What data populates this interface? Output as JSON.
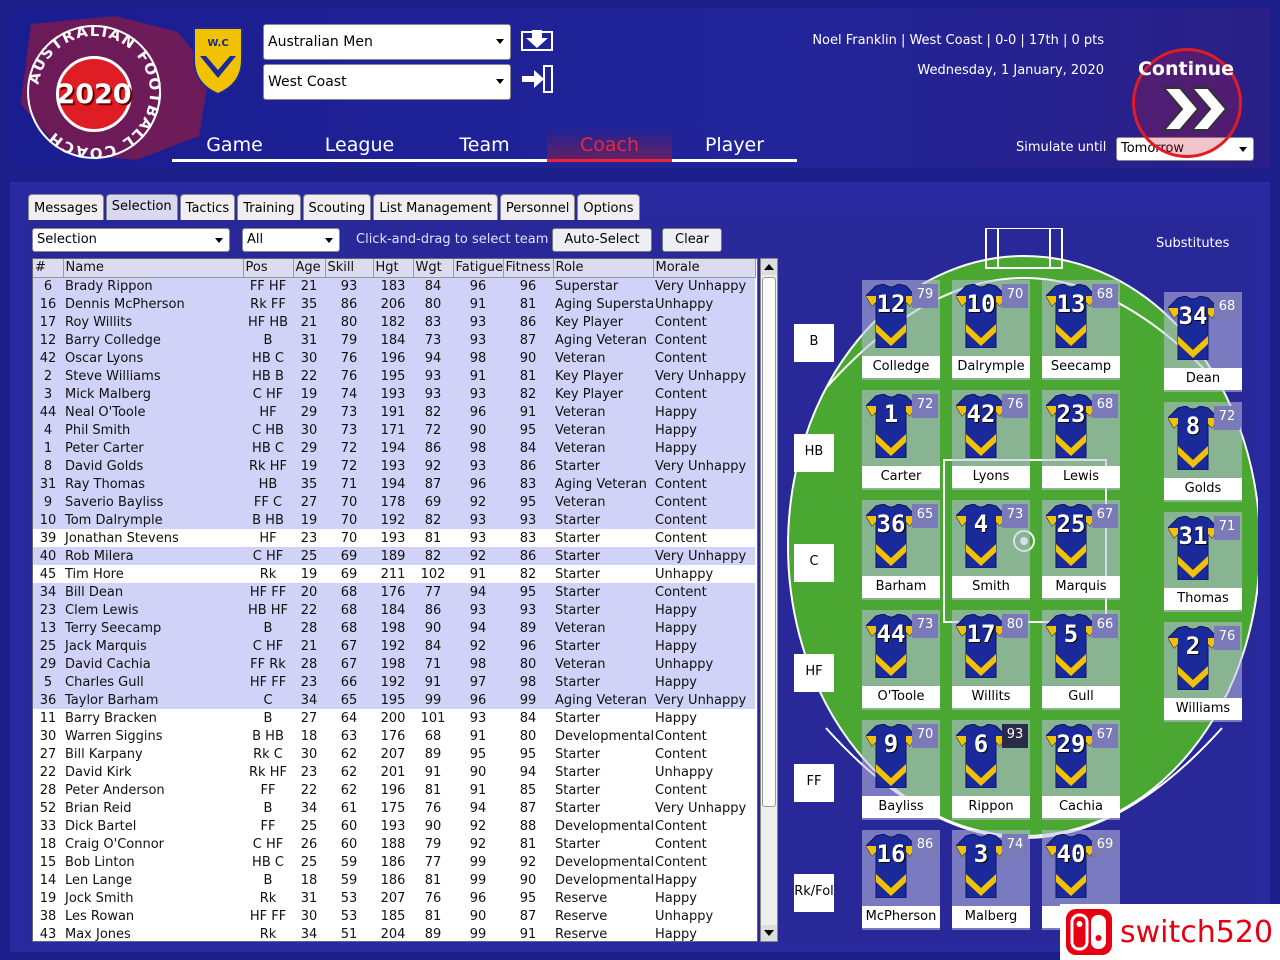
{
  "header": {
    "logo_ring_text": "AUSTRALIAN FOOTBALL COACH",
    "logo_year": "2020",
    "club_logo_text": "W.C",
    "competition_select": "Australian Men",
    "team_select": "West Coast",
    "info_line1": "Noel Franklin  |  West Coast  |  0-0  |  17th  |  0 pts",
    "info_line2": "Wednesday, 1 January, 2020",
    "simulate_label": "Simulate until",
    "simulate_value": "Tomorrow",
    "continue_label": "Continue",
    "nav": [
      {
        "label": "Game",
        "active": false
      },
      {
        "label": "League",
        "active": false
      },
      {
        "label": "Team",
        "active": false
      },
      {
        "label": "Coach",
        "active": true
      },
      {
        "label": "Player",
        "active": false
      }
    ]
  },
  "tabs": [
    {
      "label": "Messages",
      "active": false
    },
    {
      "label": "Selection",
      "active": true
    },
    {
      "label": "Tactics",
      "active": false
    },
    {
      "label": "Training",
      "active": false
    },
    {
      "label": "Scouting",
      "active": false
    },
    {
      "label": "List Management",
      "active": false
    },
    {
      "label": "Personnel",
      "active": false
    },
    {
      "label": "Options",
      "active": false
    }
  ],
  "toolbar": {
    "filter_view": "Selection",
    "filter_players": "All",
    "hint": "Click-and-drag to select team",
    "auto_select": "Auto-Select",
    "clear": "Clear"
  },
  "table": {
    "columns": [
      "#",
      "Name",
      "Pos",
      "Age",
      "Skill",
      "Hgt",
      "Wgt",
      "Fatigue",
      "Fitness",
      "Role",
      "Morale"
    ],
    "rows": [
      {
        "sel": true,
        "cells": [
          "6",
          "Brady Rippon",
          "FF HF",
          "21",
          "93",
          "183",
          "84",
          "96",
          "96",
          "Superstar",
          "Very Unhappy"
        ]
      },
      {
        "sel": true,
        "cells": [
          "16",
          "Dennis McPherson",
          "Rk FF",
          "35",
          "86",
          "206",
          "80",
          "91",
          "81",
          "Aging Superstar",
          "Unhappy"
        ]
      },
      {
        "sel": true,
        "cells": [
          "17",
          "Roy Willits",
          "HF HB",
          "21",
          "80",
          "182",
          "83",
          "93",
          "86",
          "Key Player",
          "Content"
        ]
      },
      {
        "sel": true,
        "cells": [
          "12",
          "Barry Colledge",
          "B",
          "31",
          "79",
          "184",
          "73",
          "93",
          "87",
          "Aging Veteran",
          "Content"
        ]
      },
      {
        "sel": true,
        "cells": [
          "42",
          "Oscar Lyons",
          "HB C",
          "30",
          "76",
          "196",
          "94",
          "98",
          "90",
          "Veteran",
          "Content"
        ]
      },
      {
        "sel": true,
        "cells": [
          "2",
          "Steve Williams",
          "HB B",
          "22",
          "76",
          "195",
          "93",
          "91",
          "81",
          "Key Player",
          "Very Unhappy"
        ]
      },
      {
        "sel": true,
        "cells": [
          "3",
          "Mick Malberg",
          "C HF",
          "19",
          "74",
          "193",
          "93",
          "93",
          "82",
          "Key Player",
          "Content"
        ]
      },
      {
        "sel": true,
        "cells": [
          "44",
          "Neal O'Toole",
          "HF",
          "29",
          "73",
          "191",
          "82",
          "96",
          "91",
          "Veteran",
          "Happy"
        ]
      },
      {
        "sel": true,
        "cells": [
          "4",
          "Phil Smith",
          "C HB",
          "30",
          "73",
          "171",
          "72",
          "90",
          "95",
          "Veteran",
          "Happy"
        ]
      },
      {
        "sel": true,
        "cells": [
          "1",
          "Peter Carter",
          "HB C",
          "29",
          "72",
          "194",
          "86",
          "98",
          "84",
          "Veteran",
          "Happy"
        ]
      },
      {
        "sel": true,
        "cells": [
          "8",
          "David Golds",
          "Rk HF",
          "19",
          "72",
          "193",
          "92",
          "93",
          "86",
          "Starter",
          "Very Unhappy"
        ]
      },
      {
        "sel": true,
        "cells": [
          "31",
          "Ray Thomas",
          "HB",
          "35",
          "71",
          "194",
          "87",
          "96",
          "83",
          "Aging Veteran",
          "Content"
        ]
      },
      {
        "sel": true,
        "cells": [
          "9",
          "Saverio Bayliss",
          "FF C",
          "27",
          "70",
          "178",
          "69",
          "92",
          "95",
          "Veteran",
          "Content"
        ]
      },
      {
        "sel": true,
        "cells": [
          "10",
          "Tom Dalrymple",
          "B HB",
          "19",
          "70",
          "192",
          "82",
          "93",
          "93",
          "Starter",
          "Content"
        ]
      },
      {
        "sel": false,
        "cells": [
          "39",
          "Jonathan Stevens",
          "HF",
          "23",
          "70",
          "193",
          "81",
          "93",
          "83",
          "Starter",
          "Content"
        ]
      },
      {
        "sel": true,
        "cells": [
          "40",
          "Rob Milera",
          "C HF",
          "25",
          "69",
          "189",
          "82",
          "92",
          "86",
          "Starter",
          "Very Unhappy"
        ]
      },
      {
        "sel": false,
        "cells": [
          "45",
          "Tim Hore",
          "Rk",
          "19",
          "69",
          "211",
          "102",
          "91",
          "82",
          "Starter",
          "Unhappy"
        ]
      },
      {
        "sel": true,
        "cells": [
          "34",
          "Bill Dean",
          "HF FF",
          "20",
          "68",
          "176",
          "77",
          "94",
          "95",
          "Starter",
          "Content"
        ]
      },
      {
        "sel": true,
        "cells": [
          "23",
          "Clem Lewis",
          "HB HF",
          "22",
          "68",
          "184",
          "86",
          "93",
          "93",
          "Starter",
          "Happy"
        ]
      },
      {
        "sel": true,
        "cells": [
          "13",
          "Terry Seecamp",
          "B",
          "28",
          "68",
          "198",
          "90",
          "94",
          "89",
          "Veteran",
          "Happy"
        ]
      },
      {
        "sel": true,
        "cells": [
          "25",
          "Jack Marquis",
          "C HF",
          "21",
          "67",
          "192",
          "84",
          "92",
          "96",
          "Starter",
          "Happy"
        ]
      },
      {
        "sel": true,
        "cells": [
          "29",
          "David Cachia",
          "FF Rk",
          "28",
          "67",
          "198",
          "71",
          "98",
          "80",
          "Veteran",
          "Unhappy"
        ]
      },
      {
        "sel": true,
        "cells": [
          "5",
          "Charles Gull",
          "HF FF",
          "23",
          "66",
          "192",
          "91",
          "97",
          "98",
          "Starter",
          "Happy"
        ]
      },
      {
        "sel": true,
        "cells": [
          "36",
          "Taylor Barham",
          "C",
          "34",
          "65",
          "195",
          "99",
          "96",
          "99",
          "Aging Veteran",
          "Very Unhappy"
        ]
      },
      {
        "sel": false,
        "cells": [
          "11",
          "Barry Bracken",
          "B",
          "27",
          "64",
          "200",
          "101",
          "93",
          "84",
          "Starter",
          "Happy"
        ]
      },
      {
        "sel": false,
        "cells": [
          "30",
          "Warren Siggins",
          "B HB",
          "18",
          "63",
          "176",
          "68",
          "91",
          "80",
          "Developmental",
          "Content"
        ]
      },
      {
        "sel": false,
        "cells": [
          "27",
          "Bill Karpany",
          "Rk C",
          "30",
          "62",
          "207",
          "89",
          "95",
          "95",
          "Starter",
          "Content"
        ]
      },
      {
        "sel": false,
        "cells": [
          "22",
          "David Kirk",
          "Rk HF",
          "23",
          "62",
          "201",
          "91",
          "90",
          "94",
          "Starter",
          "Unhappy"
        ]
      },
      {
        "sel": false,
        "cells": [
          "28",
          "Peter Anderson",
          "FF",
          "22",
          "62",
          "196",
          "81",
          "91",
          "85",
          "Starter",
          "Content"
        ]
      },
      {
        "sel": false,
        "cells": [
          "52",
          "Brian Reid",
          "B",
          "34",
          "61",
          "175",
          "76",
          "94",
          "87",
          "Starter",
          "Very Unhappy"
        ]
      },
      {
        "sel": false,
        "cells": [
          "33",
          "Dick Bartel",
          "FF",
          "25",
          "60",
          "193",
          "90",
          "92",
          "88",
          "Developmental",
          "Content"
        ]
      },
      {
        "sel": false,
        "cells": [
          "18",
          "Craig O'Connor",
          "C HF",
          "26",
          "60",
          "188",
          "79",
          "92",
          "81",
          "Starter",
          "Content"
        ]
      },
      {
        "sel": false,
        "cells": [
          "15",
          "Bob Linton",
          "HB C",
          "25",
          "59",
          "186",
          "77",
          "99",
          "92",
          "Developmental",
          "Content"
        ]
      },
      {
        "sel": false,
        "cells": [
          "14",
          "Len Lange",
          "B",
          "18",
          "59",
          "186",
          "81",
          "99",
          "90",
          "Developmental",
          "Happy"
        ]
      },
      {
        "sel": false,
        "cells": [
          "19",
          "Jock Smith",
          "Rk",
          "31",
          "53",
          "207",
          "76",
          "96",
          "95",
          "Reserve",
          "Happy"
        ]
      },
      {
        "sel": false,
        "cells": [
          "38",
          "Les Rowan",
          "HF FF",
          "30",
          "53",
          "185",
          "81",
          "90",
          "87",
          "Reserve",
          "Unhappy"
        ]
      },
      {
        "sel": false,
        "cells": [
          "43",
          "Max Jones",
          "Rk",
          "34",
          "51",
          "204",
          "89",
          "99",
          "91",
          "Reserve",
          "Happy"
        ]
      }
    ]
  },
  "field": {
    "lines": [
      "B",
      "HB",
      "C",
      "HF",
      "FF",
      "Rk/Fol"
    ],
    "rows": [
      [
        {
          "num": "12",
          "rating": "79",
          "name": "Colledge"
        },
        {
          "num": "10",
          "rating": "70",
          "name": "Dalrymple"
        },
        {
          "num": "13",
          "rating": "68",
          "name": "Seecamp"
        }
      ],
      [
        {
          "num": "1",
          "rating": "72",
          "name": "Carter"
        },
        {
          "num": "42",
          "rating": "76",
          "name": "Lyons"
        },
        {
          "num": "23",
          "rating": "68",
          "name": "Lewis"
        }
      ],
      [
        {
          "num": "36",
          "rating": "65",
          "name": "Barham"
        },
        {
          "num": "4",
          "rating": "73",
          "name": "Smith"
        },
        {
          "num": "25",
          "rating": "67",
          "name": "Marquis"
        }
      ],
      [
        {
          "num": "44",
          "rating": "73",
          "name": "O'Toole"
        },
        {
          "num": "17",
          "rating": "80",
          "name": "Willits"
        },
        {
          "num": "5",
          "rating": "66",
          "name": "Gull"
        }
      ],
      [
        {
          "num": "9",
          "rating": "70",
          "name": "Bayliss"
        },
        {
          "num": "6",
          "rating": "93",
          "name": "Rippon"
        },
        {
          "num": "29",
          "rating": "67",
          "name": "Cachia"
        }
      ],
      [
        {
          "num": "16",
          "rating": "86",
          "name": "McPherson"
        },
        {
          "num": "3",
          "rating": "74",
          "name": "Malberg"
        },
        {
          "num": "40",
          "rating": "69",
          "name": "Milera"
        }
      ]
    ],
    "subs_title": "Substitutes",
    "subs": [
      {
        "num": "34",
        "rating": "68",
        "name": "Dean"
      },
      {
        "num": "8",
        "rating": "72",
        "name": "Golds"
      },
      {
        "num": "31",
        "rating": "71",
        "name": "Thomas"
      },
      {
        "num": "2",
        "rating": "76",
        "name": "Williams"
      }
    ]
  },
  "watermark": "switch520",
  "colors": {
    "background": "#1c1f8a",
    "accent_red": "#e8283a",
    "jersey_blue": "#1a2a9a",
    "jersey_gold": "#f2c200",
    "field_green": "#4aa832"
  }
}
